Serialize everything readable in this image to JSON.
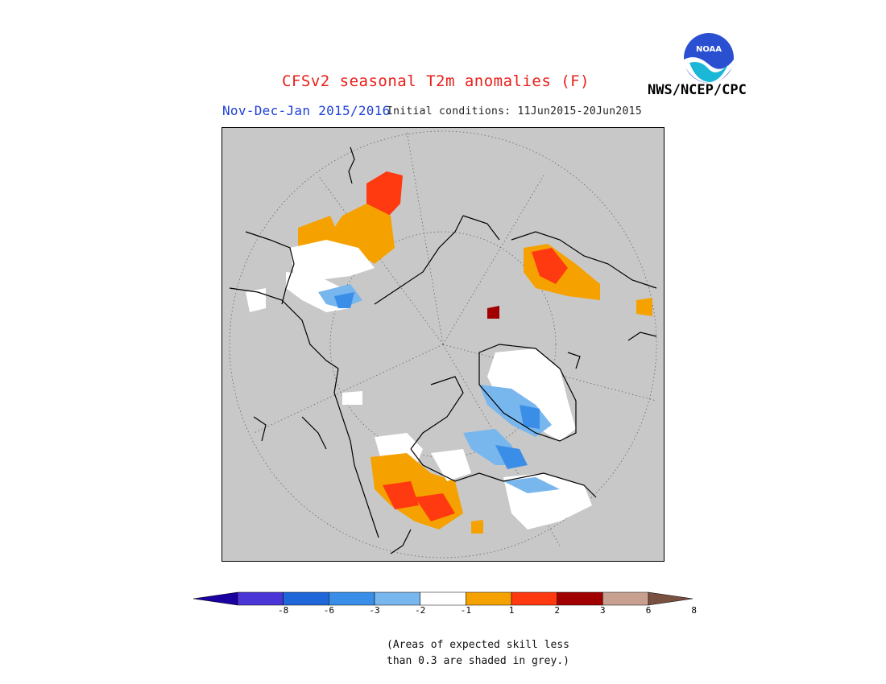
{
  "header": {
    "title": "CFSv2 seasonal T2m anomalies (F)",
    "agency": "NWS/NCEP/CPC",
    "period": "Nov-Dec-Jan 2015/2016",
    "initial_conditions": "Initial conditions: 11Jun2015-20Jun2015",
    "logo_text": "NOAA"
  },
  "map": {
    "projection": "north-polar-stereographic",
    "background_color": "#c8c8c8",
    "graticule": "dotted"
  },
  "colorbar": {
    "colors": [
      "#1a00a0",
      "#4a36d6",
      "#1f66d8",
      "#3a8ee8",
      "#78b6ee",
      "#ffffff",
      "#f5a200",
      "#ff3a10",
      "#a00000",
      "#c8a090",
      "#7a5040"
    ],
    "tick_labels": [
      "-8",
      "-6",
      "-3",
      "-2",
      "-1",
      "1",
      "2",
      "3",
      "6",
      "8"
    ]
  },
  "note": {
    "line1": "(Areas of expected skill less",
    "line2": "than 0.3 are shaded in grey.)"
  }
}
